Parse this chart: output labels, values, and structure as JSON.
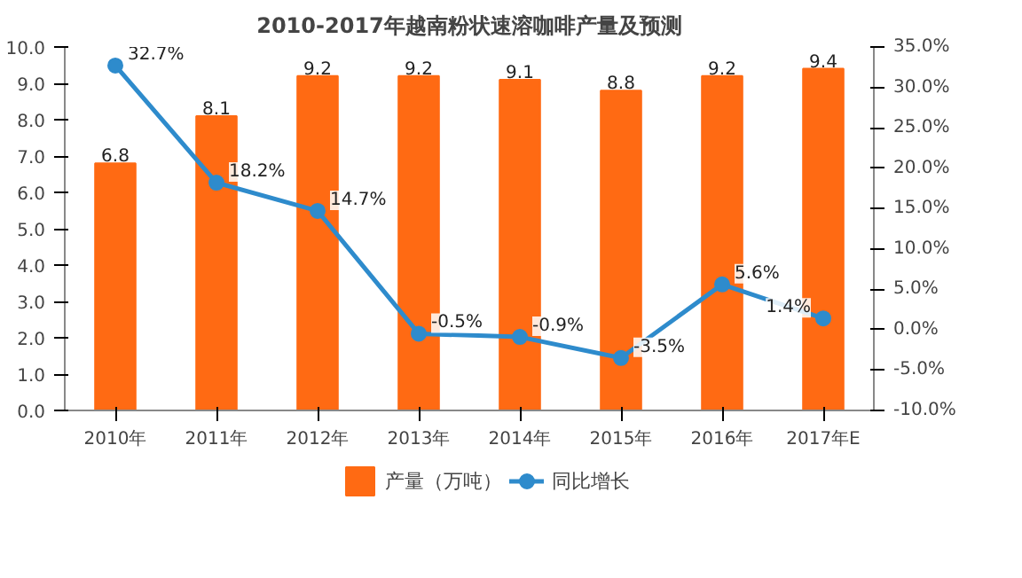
{
  "chart_data": {
    "type": "bar",
    "title": "2010-2017年越南粉状速溶咖啡产量及预测",
    "categories": [
      "2010年",
      "2011年",
      "2012年",
      "2013年",
      "2014年",
      "2015年",
      "2016年",
      "2017年E"
    ],
    "series": [
      {
        "name": "产量（万吨）",
        "color": "#ff6a13",
        "values": [
          6.8,
          8.1,
          9.2,
          9.2,
          9.1,
          8.8,
          9.2,
          9.4
        ],
        "value_labels": [
          "6.8",
          "8.1",
          "9.2",
          "9.2",
          "9.1",
          "8.8",
          "9.2",
          "9.4"
        ]
      },
      {
        "name": "同比增长",
        "type": "line",
        "axis": "y2",
        "color": "#2e8bcc",
        "marker": "circle",
        "values": [
          32.7,
          18.2,
          14.7,
          -0.5,
          -0.9,
          -3.5,
          5.6,
          1.4
        ],
        "value_labels": [
          "32.7%",
          "18.2%",
          "14.7%",
          "-0.5%",
          "-0.9%",
          "-3.5%",
          "5.6%",
          "1.4%"
        ]
      }
    ],
    "ylim": [
      0,
      10
    ],
    "yticks": [
      {
        "value": 0,
        "label": "0.0"
      },
      {
        "value": 1,
        "label": "1.0"
      },
      {
        "value": 2,
        "label": "2.0"
      },
      {
        "value": 3,
        "label": "3.0"
      },
      {
        "value": 4,
        "label": "4.0"
      },
      {
        "value": 5,
        "label": "5.0"
      },
      {
        "value": 6,
        "label": "6.0"
      },
      {
        "value": 7,
        "label": "7.0"
      },
      {
        "value": 8,
        "label": "8.0"
      },
      {
        "value": 9,
        "label": "9.0"
      },
      {
        "value": 10,
        "label": "10.0"
      }
    ],
    "y2lim": [
      -10,
      35
    ],
    "y2ticks": [
      {
        "value": -10,
        "label": "-10.0%"
      },
      {
        "value": -5,
        "label": "-5.0%"
      },
      {
        "value": 0,
        "label": "0.0%"
      },
      {
        "value": 5,
        "label": "5.0%"
      },
      {
        "value": 10,
        "label": "10.0%"
      },
      {
        "value": 15,
        "label": "15.0%"
      },
      {
        "value": 20,
        "label": "20.0%"
      },
      {
        "value": 25,
        "label": "25.0%"
      },
      {
        "value": 30,
        "label": "30.0%"
      },
      {
        "value": 35,
        "label": "35.0%"
      }
    ],
    "grid": false,
    "legend": "bottom"
  }
}
